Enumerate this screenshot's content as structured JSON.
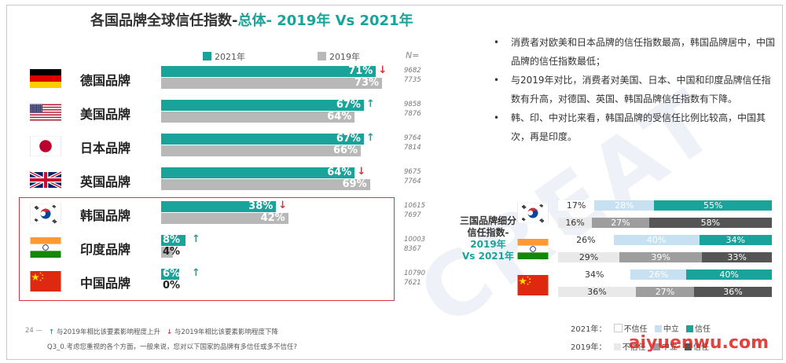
{
  "title_main": "各国品牌全球信任指数-",
  "title_highlight": "总体- 2019年 Vs 2021年",
  "legend": {
    "y2021": "2021年",
    "y2019": "2019年",
    "n": "N="
  },
  "colors": {
    "teal": "#1aa39a",
    "gray": "#b8b8b8",
    "red": "#d9333f"
  },
  "chart_data": [
    {
      "type": "bar",
      "title": "各国品牌全球信任指数-总体- 2019年 Vs 2021年",
      "categories": [
        "德国品牌",
        "美国品牌",
        "日本品牌",
        "英国品牌",
        "韩国品牌",
        "印度品牌",
        "中国品牌"
      ],
      "series": [
        {
          "name": "2021年",
          "values": [
            71,
            67,
            67,
            64,
            38,
            8,
            6
          ]
        },
        {
          "name": "2019年",
          "values": [
            73,
            64,
            66,
            69,
            42,
            4,
            0
          ]
        }
      ],
      "value_labels_2021": [
        "71%",
        "67%",
        "67%",
        "64%",
        "38%",
        "8%",
        "6%"
      ],
      "value_labels_2019": [
        "73%",
        "64%",
        "66%",
        "69%",
        "42%",
        "4%",
        "0%"
      ],
      "change_direction": [
        "down",
        "up",
        "up",
        "down",
        "down",
        "up",
        "up"
      ],
      "n_2021": [
        "9682",
        "9858",
        "9764",
        "9675",
        "10615",
        "10003",
        "10790"
      ],
      "n_2019": [
        "7735",
        "7876",
        "7814",
        "7764",
        "7697",
        "8367",
        "7621"
      ],
      "xlim": [
        0,
        100
      ]
    },
    {
      "type": "bar",
      "stacked": true,
      "title": "三国品牌细分信任指数-2019年 Vs 2021年",
      "rows": [
        {
          "country": "korea",
          "year": "2021",
          "values": [
            17,
            28,
            55
          ],
          "labels": [
            "17%",
            "28%",
            "55%"
          ]
        },
        {
          "country": "korea",
          "year": "2019",
          "values": [
            16,
            27,
            58
          ],
          "labels": [
            "16%",
            "27%",
            "58%"
          ]
        },
        {
          "country": "india",
          "year": "2021",
          "values": [
            26,
            40,
            34
          ],
          "labels": [
            "26%",
            "40%",
            "34%"
          ]
        },
        {
          "country": "india",
          "year": "2019",
          "values": [
            29,
            39,
            33
          ],
          "labels": [
            "29%",
            "39%",
            "33%"
          ]
        },
        {
          "country": "china",
          "year": "2021",
          "values": [
            34,
            26,
            40
          ],
          "labels": [
            "34%",
            "26%",
            "40%"
          ]
        },
        {
          "country": "china",
          "year": "2019",
          "values": [
            36,
            27,
            36
          ],
          "labels": [
            "36%",
            "27%",
            "36%"
          ]
        }
      ],
      "segments": [
        "不信任",
        "中立",
        "信任"
      ],
      "legend_2021": {
        "label": "2021年：",
        "items": [
          "不信任",
          "中立",
          "信任"
        ]
      },
      "legend_2019": {
        "label": "2019年：",
        "items": [
          "不信任",
          "中立",
          "信任"
        ]
      }
    }
  ],
  "subtitle": {
    "line1": "三国品牌细分",
    "line2": "信任指数-",
    "line3": "2019年",
    "line4": "Vs 2021年"
  },
  "bullets": [
    "消费者对欧美和日本品牌的信任指数最高，韩国品牌居中，中国品牌的信任指数最低；",
    "与2019年对比，消费者对美国、日本、中国和印度品牌信任指数有升高，对德国、英国、韩国品牌信任指数有下降。",
    "韩、印、中对比来看，韩国品牌的受信任比例比较高，中国其次，再是印度。"
  ],
  "footnote": {
    "up_arrow": "↑",
    "up_text": "与2019年相比该要素影响程度上升",
    "down_arrow": "↓",
    "down_text": "与2019年相比该要素影响程度下降"
  },
  "question": "Q3_0.考虑您重视的各个方面，一般来说，您对以下国家的品牌有多信任或多不信任?",
  "page_number": "24 —",
  "brand": "aiyuenwu.com",
  "watermark": "CREAT"
}
